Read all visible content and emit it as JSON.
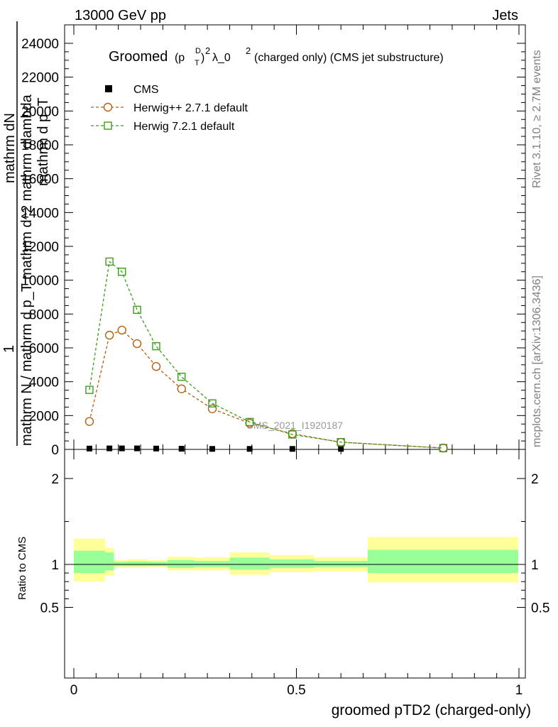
{
  "header": {
    "left": "13000 GeV pp",
    "right": "Jets"
  },
  "plot_title": {
    "prefix": "Groomed",
    "p": "(p",
    "sup_d": "D",
    "sub_t": "T",
    "close_sq": ")",
    "sup_2": "2",
    "lambda": "λ_0",
    "sup_2b": "2",
    "suffix": "(charged only) (CMS jet substructure)"
  },
  "side_labels": {
    "rivet": "Rivet 3.1.10, ≥ 2.7M events",
    "mcplots": "mcplots.cern.ch [arXiv:1306.3436]"
  },
  "watermark": "CMS_2021_I1920187",
  "y_label_main": {
    "line1": "mathrm dN",
    "line2": "1",
    "line3": "mathrm N / mathrm d p_T mathrm d^2 mathrm dlambda",
    "line4": "mathrm d p_T"
  },
  "legend": [
    {
      "label": "CMS",
      "color": "#000000",
      "marker": "square-filled"
    },
    {
      "label": "Herwig++ 2.7.1 default",
      "color": "#b35f10",
      "marker": "circle-open"
    },
    {
      "label": "Herwig 7.2.1 default",
      "color": "#3f9a1f",
      "marker": "square-open"
    }
  ],
  "ratio_label": "Ratio to CMS",
  "xlabel": "groomed pTD2 (charged-only)",
  "chart_data": {
    "type": "line",
    "xlim": [
      -0.005,
      1.0
    ],
    "ylim_main": [
      0,
      24000
    ],
    "ylim_ratio": [
      0.4,
      2.4
    ],
    "main_ticks": [
      "0",
      "2000",
      "4000",
      "6000",
      "8000",
      "10000",
      "12000",
      "14000",
      "16000",
      "18000",
      "20000",
      "22000",
      "24000"
    ],
    "main_tick_values": [
      0,
      2000,
      4000,
      6000,
      8000,
      10000,
      12000,
      14000,
      16000,
      18000,
      20000,
      22000,
      24000
    ],
    "ratio_ticks": [
      "0.5",
      "1",
      "2"
    ],
    "ratio_tick_values": [
      0.5,
      1,
      2
    ],
    "x_ticks": [
      "0",
      "0.5",
      "1"
    ],
    "x_tick_values": [
      0,
      0.5,
      1
    ],
    "series": [
      {
        "name": "CMS",
        "color": "#000000",
        "x": [
          0.035,
          0.08,
          0.108,
          0.142,
          0.185,
          0.242,
          0.311,
          0.395,
          0.491,
          0.6,
          0.83
        ],
        "y": [
          50,
          60,
          60,
          60,
          50,
          40,
          30,
          30,
          30,
          30,
          10
        ]
      },
      {
        "name": "Herwig++ 2.7.1 default",
        "color": "#b35f10",
        "x": [
          0.035,
          0.08,
          0.108,
          0.142,
          0.185,
          0.242,
          0.311,
          0.395,
          0.491,
          0.6,
          0.83
        ],
        "y": [
          1650,
          6750,
          7050,
          6250,
          4900,
          3580,
          2400,
          1550,
          930,
          420,
          80
        ]
      },
      {
        "name": "Herwig 7.2.1 default",
        "color": "#3f9a1f",
        "x": [
          0.035,
          0.08,
          0.108,
          0.142,
          0.185,
          0.242,
          0.311,
          0.395,
          0.491,
          0.6,
          0.83
        ],
        "y": [
          3520,
          11100,
          10500,
          8250,
          6100,
          4290,
          2720,
          1620,
          880,
          430,
          80
        ]
      }
    ],
    "ratio_bands": [
      {
        "x0": 0.0,
        "x1": 0.07,
        "inner": [
          0.9,
          1.16
        ],
        "outer": [
          0.8,
          1.3
        ]
      },
      {
        "x0": 0.07,
        "x1": 0.09,
        "inner": [
          0.93,
          1.14
        ],
        "outer": [
          0.87,
          1.19
        ]
      },
      {
        "x0": 0.09,
        "x1": 0.12,
        "inner": [
          0.98,
          1.03
        ],
        "outer": [
          0.96,
          1.05
        ]
      },
      {
        "x0": 0.12,
        "x1": 0.165,
        "inner": [
          0.98,
          1.035
        ],
        "outer": [
          0.96,
          1.06
        ]
      },
      {
        "x0": 0.165,
        "x1": 0.21,
        "inner": [
          0.98,
          1.03
        ],
        "outer": [
          0.97,
          1.05
        ]
      },
      {
        "x0": 0.21,
        "x1": 0.27,
        "inner": [
          0.96,
          1.05
        ],
        "outer": [
          0.93,
          1.09
        ]
      },
      {
        "x0": 0.27,
        "x1": 0.35,
        "inner": [
          0.97,
          1.04
        ],
        "outer": [
          0.93,
          1.08
        ]
      },
      {
        "x0": 0.35,
        "x1": 0.44,
        "inner": [
          0.94,
          1.08
        ],
        "outer": [
          0.88,
          1.14
        ]
      },
      {
        "x0": 0.44,
        "x1": 0.54,
        "inner": [
          0.96,
          1.06
        ],
        "outer": [
          0.91,
          1.11
        ]
      },
      {
        "x0": 0.54,
        "x1": 0.66,
        "inner": [
          0.97,
          1.04
        ],
        "outer": [
          0.92,
          1.08
        ]
      },
      {
        "x0": 0.66,
        "x1": 1.0,
        "inner": [
          0.9,
          1.17
        ],
        "outer": [
          0.79,
          1.32
        ]
      }
    ]
  }
}
